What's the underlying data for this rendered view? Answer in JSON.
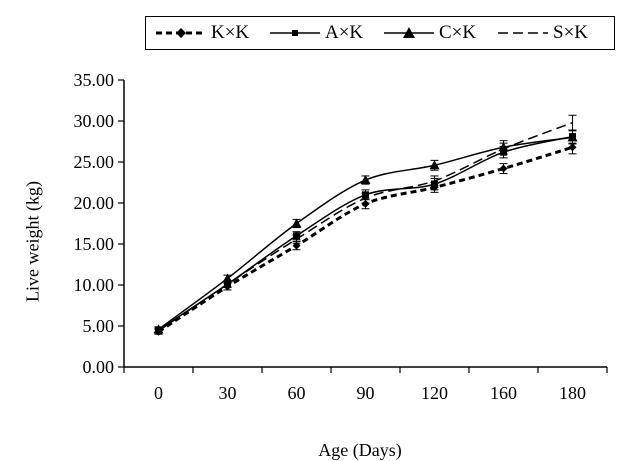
{
  "chart_data": {
    "type": "line",
    "categories": [
      "0",
      "30",
      "60",
      "90",
      "120",
      "160",
      "180"
    ],
    "xlabel": "Age (Days)",
    "ylabel": "Live weight (kg)",
    "ylim": [
      0,
      35
    ],
    "yticks": [
      "0.00",
      "5.00",
      "10.00",
      "15.00",
      "20.00",
      "25.00",
      "30.00",
      "35.00"
    ],
    "grid": false,
    "legend_position": "top",
    "series": [
      {
        "name": "K×K",
        "style": "dotted-bold",
        "marker": "diamond",
        "values": [
          4.3,
          9.8,
          14.8,
          19.9,
          21.9,
          24.2,
          26.8
        ],
        "error": [
          0.3,
          0.4,
          0.5,
          0.6,
          0.6,
          0.6,
          0.8
        ]
      },
      {
        "name": "A×K",
        "style": "solid",
        "marker": "square",
        "values": [
          4.5,
          10.1,
          16.0,
          21.0,
          22.3,
          26.2,
          28.1
        ],
        "error": [
          0.3,
          0.4,
          0.5,
          0.6,
          0.7,
          0.7,
          0.8
        ]
      },
      {
        "name": "C×K",
        "style": "solid",
        "marker": "triangle",
        "values": [
          4.6,
          10.8,
          17.5,
          22.8,
          24.6,
          26.8,
          28.0
        ],
        "error": [
          0.3,
          0.4,
          0.5,
          0.5,
          0.6,
          0.8,
          0.8
        ]
      },
      {
        "name": "S×K",
        "style": "dashed",
        "marker": "none",
        "values": [
          4.4,
          10.1,
          15.6,
          20.6,
          22.7,
          26.6,
          29.8
        ],
        "error": [
          0.3,
          0.4,
          0.5,
          0.6,
          0.6,
          0.7,
          0.9
        ]
      }
    ]
  }
}
